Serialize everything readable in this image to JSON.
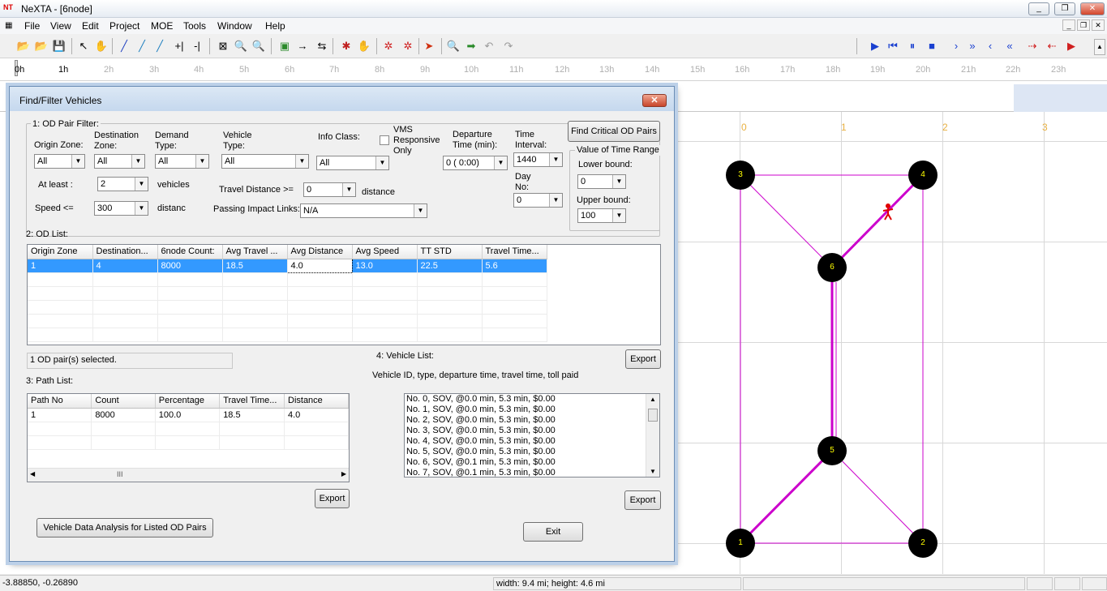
{
  "window": {
    "app_icon": "NT",
    "title": "NeXTA - [6node]"
  },
  "menu": [
    "File",
    "View",
    "Edit",
    "Project",
    "MOE",
    "Tools",
    "Window",
    "Help"
  ],
  "timeline": {
    "hours": [
      "0h",
      "1h",
      "2h",
      "3h",
      "4h",
      "5h",
      "6h",
      "7h",
      "8h",
      "9h",
      "10h",
      "11h",
      "12h",
      "13h",
      "14h",
      "15h",
      "16h",
      "17h",
      "18h",
      "19h",
      "20h",
      "21h",
      "22h",
      "23h"
    ]
  },
  "map": {
    "grid_labels": [
      "0",
      "1",
      "2",
      "3"
    ],
    "nodes": [
      "1",
      "2",
      "3",
      "4",
      "5",
      "6"
    ]
  },
  "dialog": {
    "title": "Find/Filter Vehicles",
    "close_label": "✕",
    "od_filter": {
      "section": "1: OD Pair Filter:",
      "origin_zone_label": "Origin Zone:",
      "origin_zone_value": "All",
      "destination_zone_label_1": "Destination",
      "destination_zone_label_2": "Zone:",
      "destination_zone_value": "All",
      "demand_type_label_1": "Demand",
      "demand_type_label_2": "Type:",
      "demand_type_value": "All",
      "vehicle_type_label_1": "Vehicle",
      "vehicle_type_label_2": "Type:",
      "vehicle_type_value": "All",
      "info_class_label": "Info Class:",
      "info_class_value": "All",
      "vms_label_1": "VMS",
      "vms_label_2": "Responsive",
      "vms_label_3": "Only",
      "departure_label_1": "Departure",
      "departure_label_2": "Time (min):",
      "departure_value": "0 ( 0:00)",
      "time_interval_label_1": "Time",
      "time_interval_label_2": "Interval:",
      "time_interval_value": "1440",
      "day_no_label_1": "Day",
      "day_no_label_2": "No:",
      "day_no_value": "0",
      "at_least_label": "At least :",
      "at_least_value": "2",
      "at_least_unit": "vehicles",
      "speed_label": "Speed <=",
      "speed_value": "300",
      "speed_unit": "distanc",
      "travel_distance_label": "Travel Distance >=",
      "travel_distance_value": "0",
      "travel_distance_unit": "distance",
      "passing_links_label": "Passing Impact Links:",
      "passing_links_value": "N/A",
      "find_critical_button": "Find Critical OD Pairs",
      "time_range_title": "Value of Time Range",
      "lower_bound_label": "Lower bound:",
      "lower_bound_value": "0",
      "upper_bound_label": "Upper bound:",
      "upper_bound_value": "100"
    },
    "od_list": {
      "section": "2: OD List:",
      "columns": [
        "Origin Zone",
        "Destination...",
        "6node Count:",
        "Avg Travel ...",
        "Avg Distance",
        "Avg Speed",
        "TT STD",
        "Travel Time..."
      ],
      "rows": [
        [
          "1",
          "4",
          "8000",
          "18.5",
          "4.0",
          "13.0",
          "22.5",
          "5.6"
        ]
      ],
      "selected_text": "1 OD pair(s) selected."
    },
    "path_list": {
      "section": "3: Path List:",
      "columns": [
        "Path No",
        "Count",
        "Percentage",
        "Travel Time...",
        "Distance"
      ],
      "rows": [
        [
          "1",
          "8000",
          "100.0",
          "18.5",
          "4.0"
        ]
      ],
      "export_label": "Export",
      "scroll_thumb": "III"
    },
    "vehicle_list": {
      "section": "4: Vehicle List:",
      "description": "Vehicle ID, type, departure time, travel time, toll paid",
      "export_top_label": "Export",
      "export_bottom_label": "Export",
      "items": [
        "No. 0, SOV, @0.0 min, 5.3 min, $0.00",
        "No. 1, SOV, @0.0 min, 5.3 min, $0.00",
        "No. 2, SOV, @0.0 min, 5.3 min, $0.00",
        "No. 3, SOV, @0.0 min, 5.3 min, $0.00",
        "No. 4, SOV, @0.0 min, 5.3 min, $0.00",
        "No. 5, SOV, @0.0 min, 5.3 min, $0.00",
        "No. 6, SOV, @0.1 min, 5.3 min, $0.00",
        "No. 7, SOV, @0.1 min, 5.3 min, $0.00"
      ]
    },
    "analysis_button": "Vehicle Data Analysis for Listed OD Pairs",
    "exit_button": "Exit"
  },
  "status": {
    "coordinates": "-3.88850, -0.26890",
    "dimensions": "width: 9.4 mi; height: 4.6 mi"
  },
  "colors": {
    "selection": "#3399ff",
    "link_highlight": "#cc00cc",
    "grid_label": "#e8b040",
    "node_fill": "#000000",
    "node_label": "#ffff00"
  }
}
